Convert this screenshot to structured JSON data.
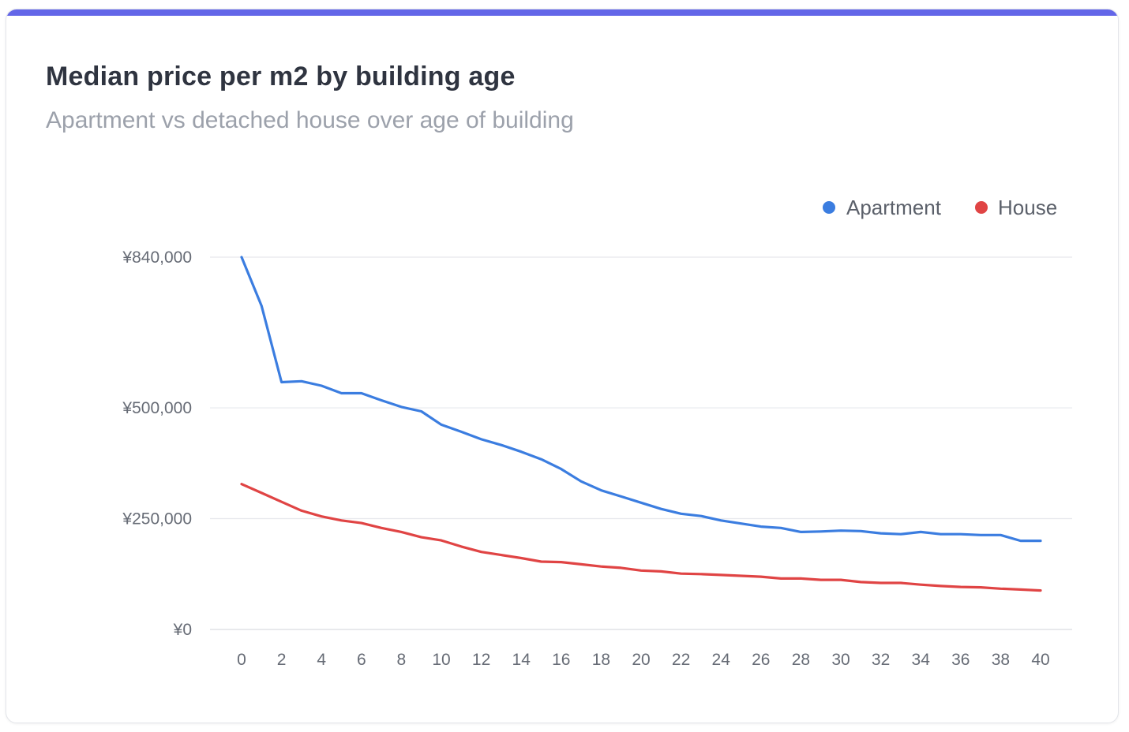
{
  "card": {
    "title": "Median price per m2 by building age",
    "subtitle": "Apartment vs detached house over age of building",
    "accent_color": "#6366e8"
  },
  "chart_data": {
    "type": "line",
    "x": [
      0,
      1,
      2,
      3,
      4,
      5,
      6,
      7,
      8,
      9,
      10,
      11,
      12,
      13,
      14,
      15,
      16,
      17,
      18,
      19,
      20,
      21,
      22,
      23,
      24,
      25,
      26,
      27,
      28,
      29,
      30,
      31,
      32,
      33,
      34,
      35,
      36,
      37,
      38,
      39,
      40
    ],
    "x_tick_labels": [
      "0",
      "2",
      "4",
      "6",
      "8",
      "10",
      "12",
      "14",
      "16",
      "18",
      "20",
      "22",
      "24",
      "26",
      "28",
      "30",
      "32",
      "34",
      "36",
      "38",
      "40"
    ],
    "y_tick_labels": [
      "¥0",
      "¥250,000",
      "¥500,000",
      "¥840,000"
    ],
    "y_ticks": [
      0,
      250000,
      500000,
      840000
    ],
    "ylim": [
      0,
      840000
    ],
    "xlim": [
      0,
      40
    ],
    "grid": true,
    "legend_position": "top-right",
    "series": [
      {
        "name": "Apartment",
        "color": "#3b7de0",
        "values": [
          840000,
          730000,
          558000,
          560000,
          550000,
          533000,
          533000,
          517000,
          502000,
          492000,
          462000,
          446000,
          429000,
          416000,
          401000,
          384000,
          362000,
          334000,
          314000,
          300000,
          286000,
          272000,
          261000,
          256000,
          246000,
          239000,
          232000,
          229000,
          220000,
          221000,
          223000,
          222000,
          217000,
          215000,
          220000,
          215000,
          215000,
          213000,
          213000,
          200000,
          200000
        ]
      },
      {
        "name": "House",
        "color": "#e04444",
        "values": [
          328000,
          308000,
          288000,
          268000,
          255000,
          246000,
          240000,
          229000,
          220000,
          208000,
          201000,
          187000,
          175000,
          168000,
          161000,
          153000,
          152000,
          147000,
          142000,
          139000,
          133000,
          131000,
          126000,
          125000,
          123000,
          121000,
          119000,
          115000,
          115000,
          112000,
          112000,
          107000,
          105000,
          105000,
          101000,
          98000,
          96000,
          95000,
          92000,
          90000,
          88000
        ]
      }
    ]
  }
}
